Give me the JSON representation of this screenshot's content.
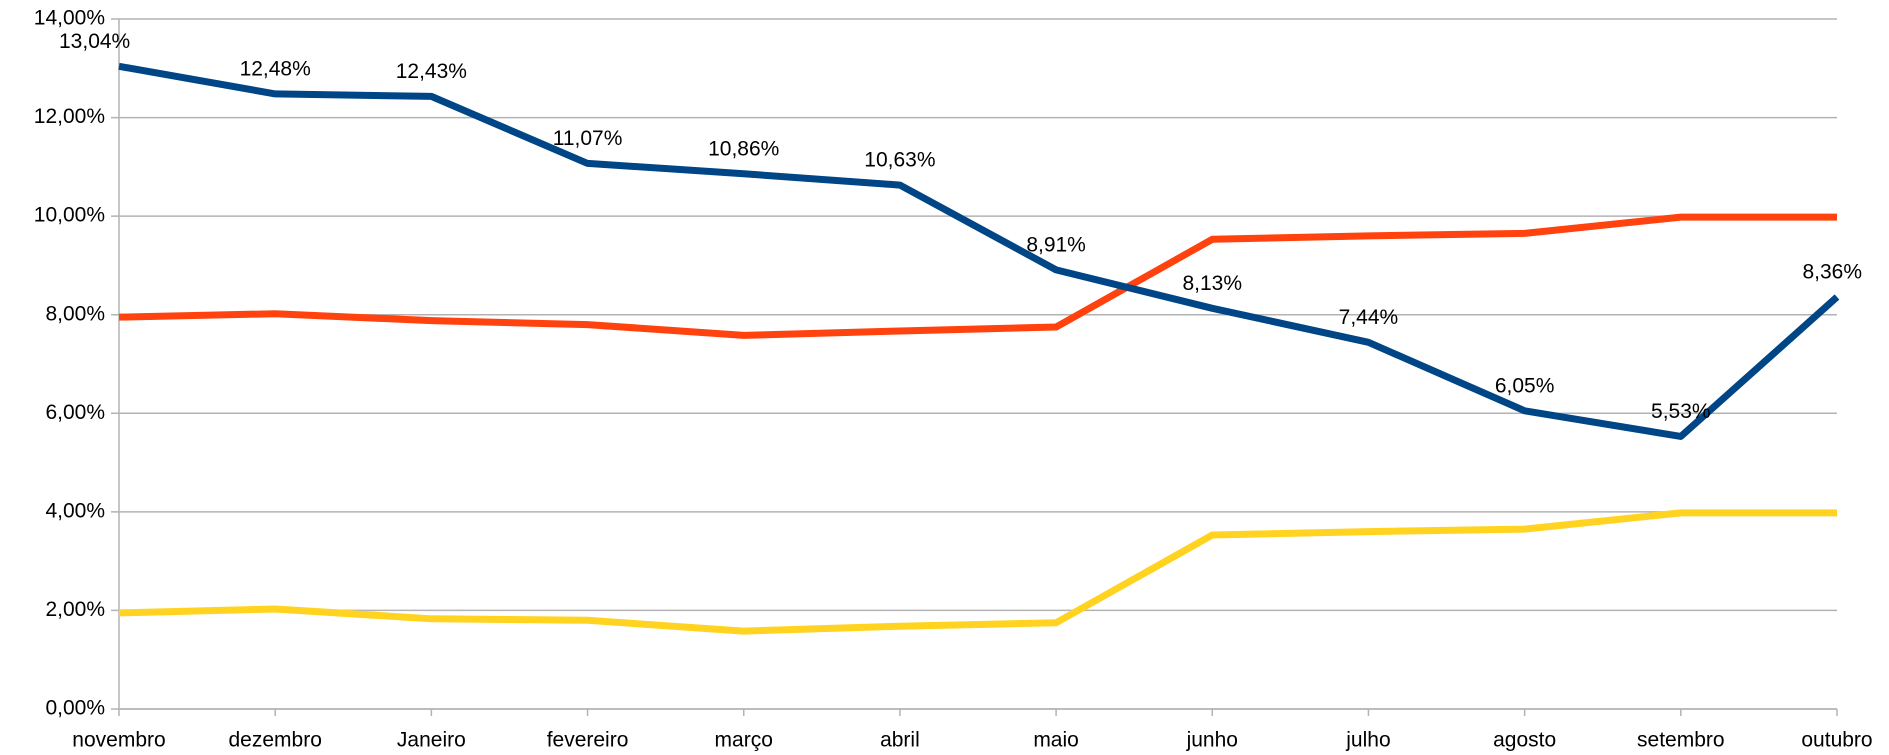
{
  "chart_data": {
    "type": "line",
    "categories": [
      "novembro",
      "dezembro",
      "Janeiro",
      "fevereiro",
      "março",
      "abril",
      "maio",
      "junho",
      "julho",
      "agosto",
      "setembro",
      "outubro"
    ],
    "series": [
      {
        "color": "#ff420e",
        "values": [
          7.95,
          8.02,
          7.88,
          7.8,
          7.58,
          7.67,
          7.75,
          9.53,
          9.6,
          9.65,
          9.98,
          9.98
        ]
      },
      {
        "color": "#ffd320",
        "values": [
          1.95,
          2.03,
          1.83,
          1.8,
          1.58,
          1.68,
          1.75,
          3.53,
          3.6,
          3.65,
          3.98,
          3.98
        ]
      },
      {
        "color": "#004586",
        "values": [
          13.04,
          12.48,
          12.43,
          11.07,
          10.86,
          10.63,
          8.91,
          8.13,
          7.44,
          6.05,
          5.53,
          8.36
        ],
        "value_labels": [
          "13,04%",
          "12,48%",
          "12,43%",
          "11,07%",
          "10,86%",
          "10,63%",
          "8,91%",
          "8,13%",
          "7,44%",
          "6,05%",
          "5,53%",
          "8,36%"
        ]
      }
    ],
    "ylim": [
      0,
      14
    ],
    "yticks": [
      {
        "value": 0,
        "label": "0,00%"
      },
      {
        "value": 2,
        "label": "2,00%"
      },
      {
        "value": 4,
        "label": "4,00%"
      },
      {
        "value": 6,
        "label": "6,00%"
      },
      {
        "value": 8,
        "label": "8,00%"
      },
      {
        "value": 10,
        "label": "10,00%"
      },
      {
        "value": 12,
        "label": "12,00%"
      },
      {
        "value": 14,
        "label": "14,00%"
      }
    ],
    "grid": true
  }
}
